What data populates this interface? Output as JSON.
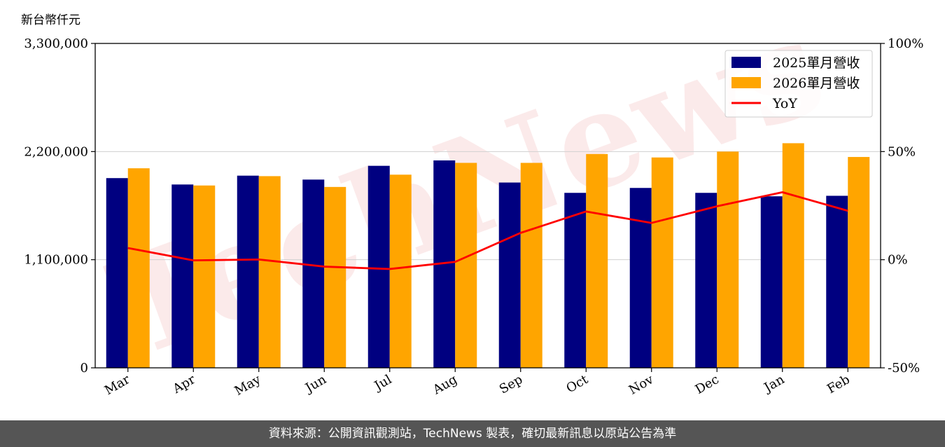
{
  "chart_data": {
    "type": "bar",
    "y_unit_label": "新台幣仟元",
    "categories": [
      "Mar",
      "Apr",
      "May",
      "Jun",
      "Jul",
      "Aug",
      "Sep",
      "Oct",
      "Nov",
      "Dec",
      "Jan",
      "Feb"
    ],
    "series": [
      {
        "name": "2025單月營收",
        "type": "bar",
        "color": "#000080",
        "axis": "left",
        "values": [
          1930000,
          1865000,
          1955000,
          1915000,
          2055000,
          2110000,
          1885000,
          1780000,
          1830000,
          1780000,
          1745000,
          1750000
        ]
      },
      {
        "name": "2026單月營收",
        "type": "bar",
        "color": "#FFA500",
        "axis": "left",
        "values": [
          2030000,
          1855000,
          1950000,
          1840000,
          1965000,
          2085000,
          2085000,
          2175000,
          2140000,
          2200000,
          2285000,
          2145000
        ]
      },
      {
        "name": "YoY",
        "type": "line",
        "color": "#FF0000",
        "axis": "right",
        "values": [
          5.4,
          -0.3,
          0.1,
          -3.2,
          -4.3,
          -1.0,
          12.4,
          22.3,
          17.0,
          24.7,
          31.2,
          22.6
        ]
      }
    ],
    "y_left": {
      "min": 0,
      "max": 3300000,
      "ticks": [
        0,
        1100000,
        2200000,
        3300000
      ],
      "tick_labels": [
        "0",
        "1,100,000",
        "2,200,000",
        "3,300,000"
      ]
    },
    "y_right": {
      "min": -50,
      "max": 100,
      "ticks": [
        -50,
        0,
        50,
        100
      ],
      "tick_labels": [
        "-50%",
        "0%",
        "50%",
        "100%"
      ]
    },
    "grid": "horizontal",
    "legend_position": "top-right"
  },
  "watermark": "TechNews",
  "footer": {
    "source_text": "資料來源：公開資訊觀測站，TechNews 製表，確切最新訊息以原站公告為準"
  }
}
